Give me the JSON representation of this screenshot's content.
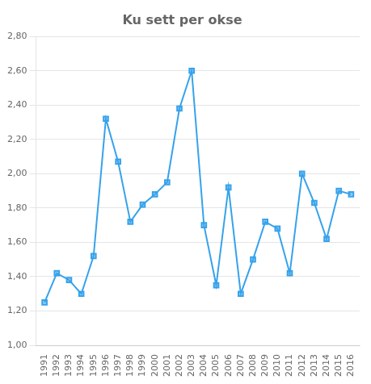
{
  "chart_data": {
    "type": "line",
    "title": "Ku sett per okse",
    "x": [
      1991,
      1992,
      1993,
      1994,
      1995,
      1996,
      1997,
      1998,
      1999,
      2000,
      2001,
      2002,
      2003,
      2004,
      2005,
      2006,
      2007,
      2008,
      2009,
      2010,
      2011,
      2012,
      2013,
      2014,
      2015,
      2016
    ],
    "values": [
      1.25,
      1.42,
      1.38,
      1.3,
      1.52,
      2.32,
      2.07,
      1.72,
      1.82,
      1.88,
      1.95,
      2.38,
      2.6,
      1.7,
      1.35,
      1.92,
      1.3,
      1.5,
      1.72,
      1.68,
      1.42,
      2.0,
      1.83,
      1.62,
      1.9,
      1.88
    ],
    "xlim": [
      1990.3,
      2016.7
    ],
    "xticks": [
      1991,
      1992,
      1993,
      1994,
      1995,
      1996,
      1997,
      1998,
      1999,
      2000,
      2001,
      2002,
      2003,
      2004,
      2005,
      2006,
      2007,
      2008,
      2009,
      2010,
      2011,
      2012,
      2013,
      2014,
      2015,
      2016
    ],
    "ylim": [
      1.0,
      2.8
    ],
    "yticks": [
      {
        "value": 1.0,
        "label": "1,00"
      },
      {
        "value": 1.2,
        "label": "1,20"
      },
      {
        "value": 1.4,
        "label": "1,40"
      },
      {
        "value": 1.6,
        "label": "1,60"
      },
      {
        "value": 1.8,
        "label": "1,80"
      },
      {
        "value": 2.0,
        "label": "2,00"
      },
      {
        "value": 2.2,
        "label": "2,20"
      },
      {
        "value": 2.4,
        "label": "2,40"
      },
      {
        "value": 2.6,
        "label": "2,60"
      },
      {
        "value": 2.8,
        "label": "2,80"
      }
    ],
    "grid": true,
    "marker": "square"
  }
}
